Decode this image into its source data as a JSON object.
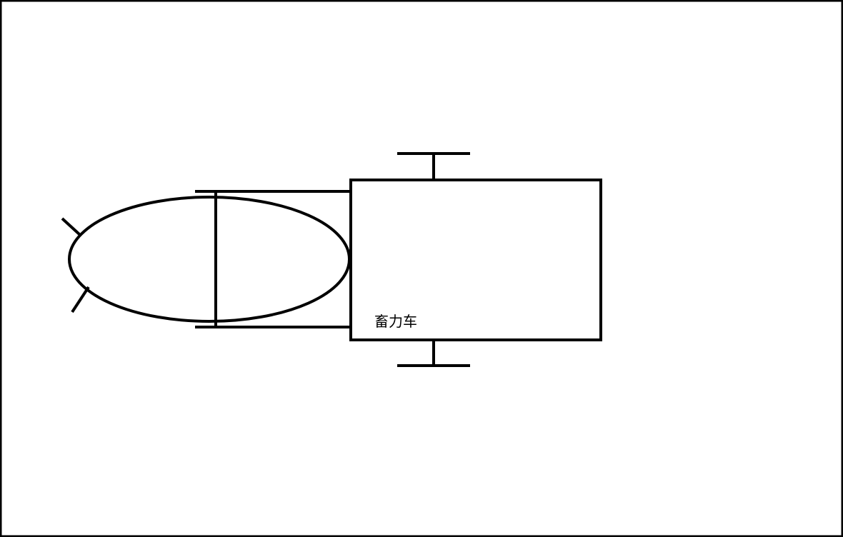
{
  "diagram": {
    "label": "畜力车"
  },
  "colors": {
    "stroke": "#000000",
    "background": "#ffffff"
  }
}
